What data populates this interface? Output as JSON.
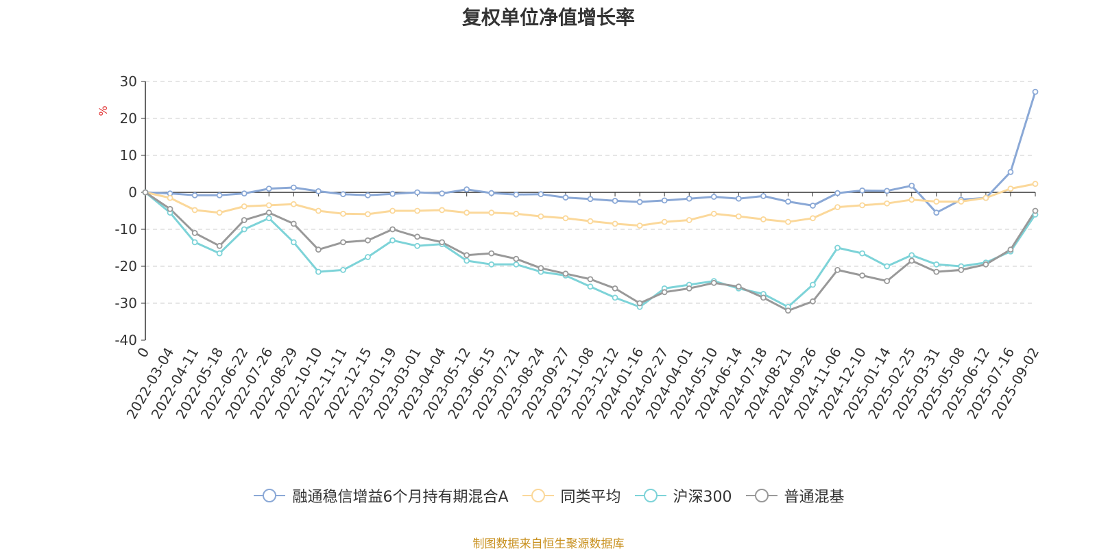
{
  "chart_data": {
    "type": "line",
    "title": "复权单位净值增长率",
    "ylabel": "%",
    "ylim": [
      -40,
      30
    ],
    "yticks": [
      "30",
      "20",
      "10",
      "0",
      "-10",
      "-20",
      "-30",
      "-40"
    ],
    "x": [
      "0",
      "2022-03-04",
      "2022-04-11",
      "2022-05-18",
      "2022-06-22",
      "2022-07-26",
      "2022-08-29",
      "2022-10-10",
      "2022-11-11",
      "2022-12-15",
      "2023-01-19",
      "2023-03-01",
      "2023-04-04",
      "2023-05-12",
      "2023-06-15",
      "2023-07-21",
      "2023-08-24",
      "2023-09-27",
      "2023-11-08",
      "2023-12-12",
      "2024-01-16",
      "2024-02-27",
      "2024-04-01",
      "2024-05-10",
      "2024-06-14",
      "2024-07-18",
      "2024-08-21",
      "2024-09-26",
      "2024-11-06",
      "2024-12-10",
      "2025-01-14",
      "2025-02-25",
      "2025-03-31",
      "2025-05-08",
      "2025-06-12",
      "2025-07-16",
      "2025-09-02"
    ],
    "grid": "horizontal-dashed",
    "legend_position": "bottom",
    "series": [
      {
        "name": "融通稳信增益6个月持有期混合A",
        "color": "#8aa8d6",
        "values": [
          0,
          -0.3,
          -0.8,
          -0.8,
          -0.3,
          1.0,
          1.3,
          0.3,
          -0.5,
          -0.8,
          -0.4,
          0.0,
          -0.3,
          0.8,
          -0.2,
          -0.6,
          -0.5,
          -1.4,
          -1.8,
          -2.3,
          -2.6,
          -2.2,
          -1.7,
          -1.2,
          -1.7,
          -1.0,
          -2.5,
          -3.6,
          -0.2,
          0.5,
          0.4,
          1.8,
          -5.5,
          -2.0,
          -1.5,
          5.5,
          27.2
        ]
      },
      {
        "name": "同类平均",
        "color": "#fbd89a",
        "values": [
          0,
          -1.5,
          -4.8,
          -5.5,
          -3.8,
          -3.5,
          -3.2,
          -5.0,
          -5.8,
          -5.9,
          -5.0,
          -5.0,
          -4.8,
          -5.5,
          -5.5,
          -5.8,
          -6.5,
          -7.0,
          -7.8,
          -8.5,
          -9.0,
          -8.0,
          -7.5,
          -5.8,
          -6.5,
          -7.3,
          -8.0,
          -7.0,
          -4.0,
          -3.5,
          -3.0,
          -2.0,
          -2.5,
          -2.5,
          -1.5,
          1.0,
          2.3
        ]
      },
      {
        "name": "沪深300",
        "color": "#7dd3d8",
        "values": [
          0,
          -5.5,
          -13.5,
          -16.5,
          -10.0,
          -7.0,
          -13.5,
          -21.5,
          -21.0,
          -17.5,
          -13.0,
          -14.5,
          -14.0,
          -18.5,
          -19.5,
          -19.5,
          -21.5,
          -22.5,
          -25.5,
          -28.5,
          -31.0,
          -26.0,
          -25.0,
          -24.0,
          -26.0,
          -27.5,
          -31.0,
          -25.0,
          -15.0,
          -16.5,
          -20.0,
          -17.0,
          -19.5,
          -20.0,
          -19.0,
          -16.0,
          -6.0
        ]
      },
      {
        "name": "普通混基",
        "color": "#999999",
        "values": [
          0,
          -4.5,
          -11.0,
          -14.5,
          -7.5,
          -5.5,
          -8.5,
          -15.5,
          -13.5,
          -13.0,
          -10.0,
          -12.0,
          -13.5,
          -17.0,
          -16.5,
          -18.0,
          -20.5,
          -22.0,
          -23.5,
          -26.0,
          -30.0,
          -27.0,
          -26.0,
          -24.5,
          -25.5,
          -28.5,
          -32.0,
          -29.5,
          -21.0,
          -22.5,
          -24.0,
          -18.5,
          -21.5,
          -21.0,
          -19.5,
          -15.5,
          -5.0
        ]
      }
    ]
  },
  "footer": {
    "source": "制图数据来自恒生聚源数据库"
  }
}
